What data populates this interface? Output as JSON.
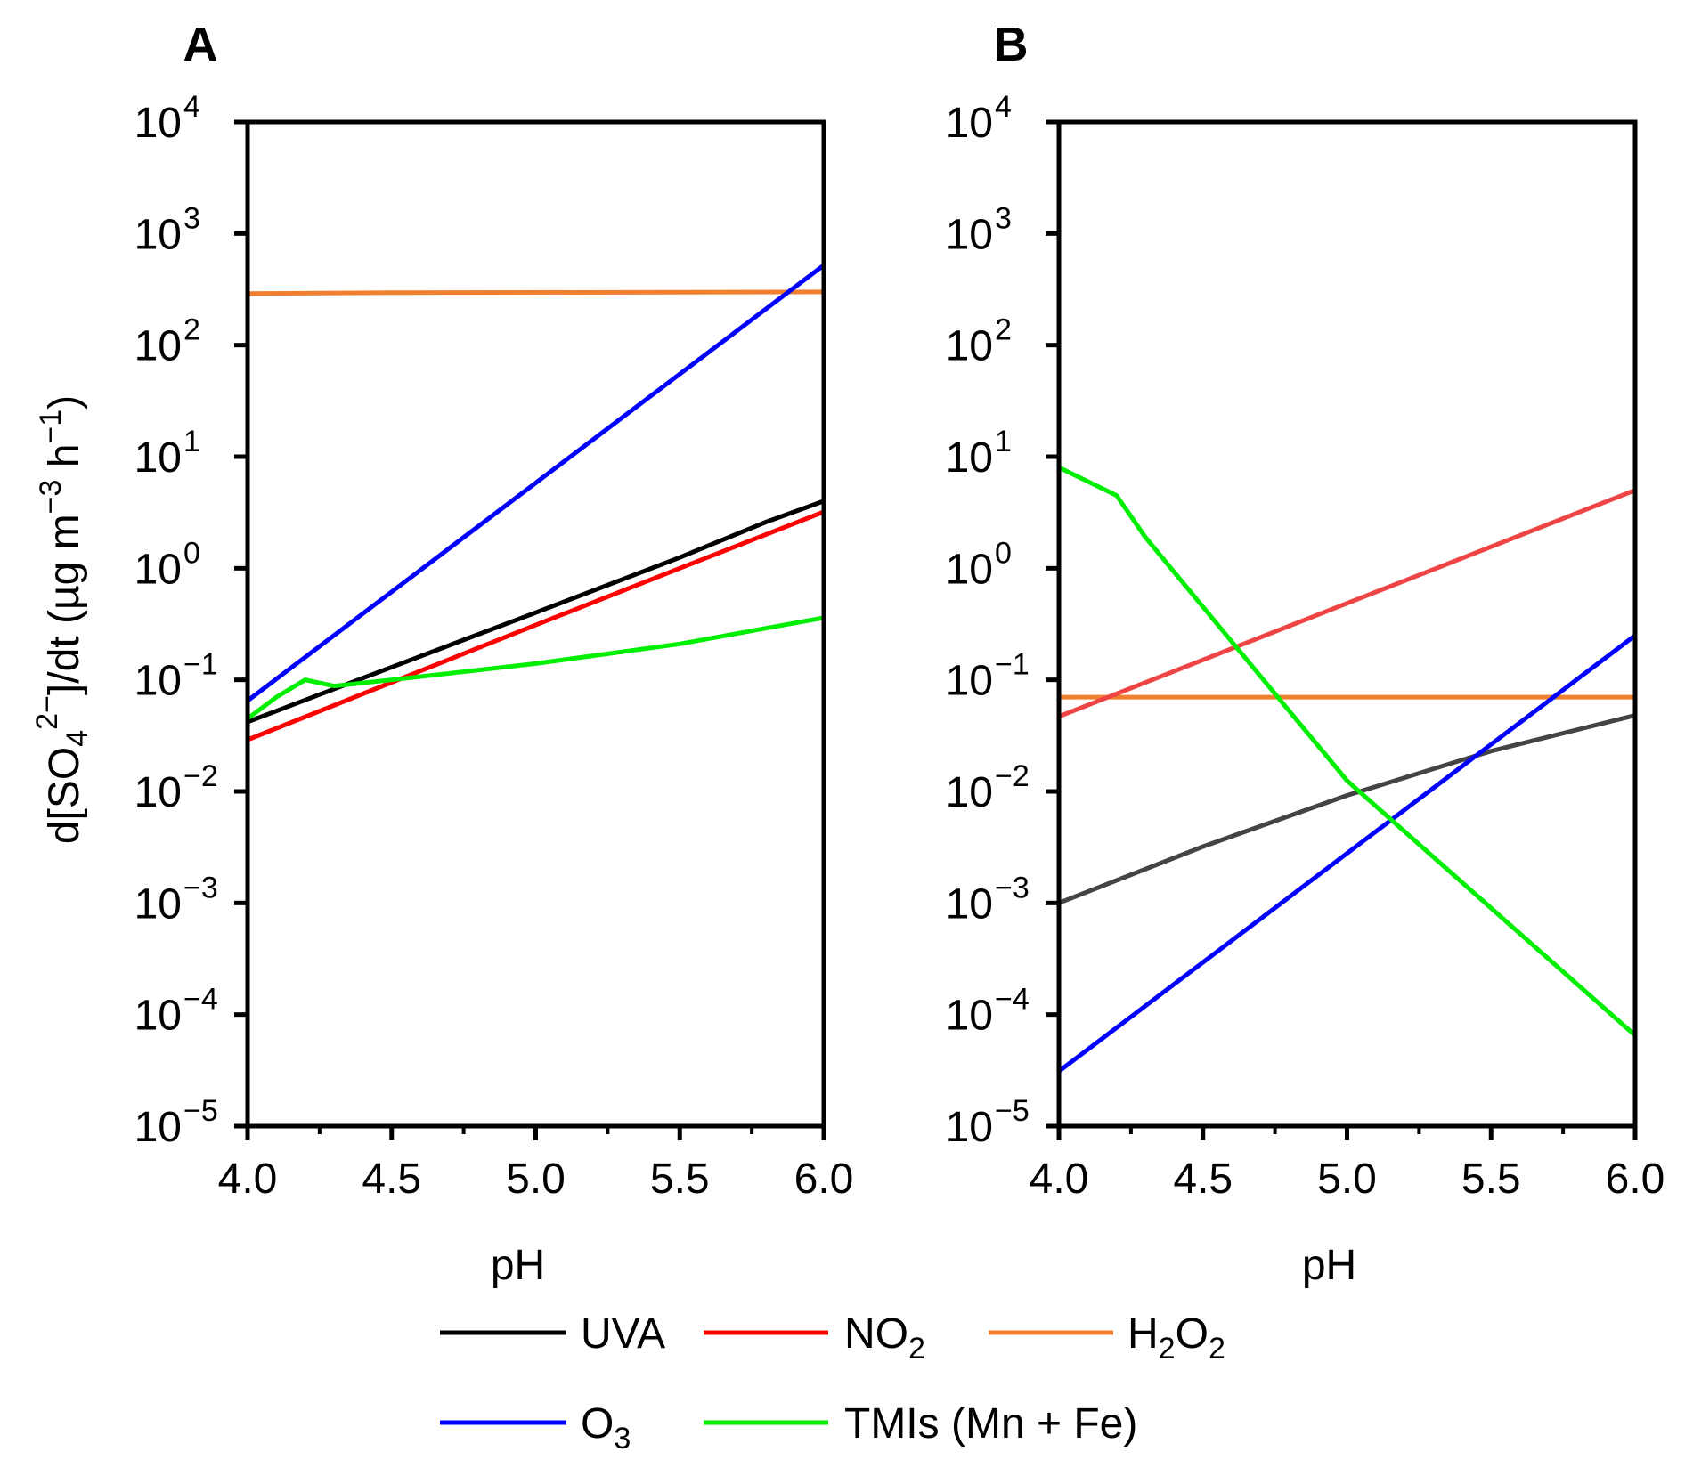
{
  "figure": {
    "legend": [
      {
        "key": "UVA",
        "label": "UVA",
        "sub": "",
        "tail": "",
        "color": "#000000"
      },
      {
        "key": "NO2",
        "label": "NO",
        "sub": "2",
        "tail": "",
        "color": "#ff0000"
      },
      {
        "key": "H2O2",
        "label": "H",
        "sub": "2",
        "tail": "O",
        "sub2": "2",
        "color": "#f08030"
      },
      {
        "key": "O3",
        "label": "O",
        "sub": "3",
        "tail": "",
        "color": "#0000ff"
      },
      {
        "key": "TMIs",
        "label": "TMIs (Mn + Fe)",
        "sub": "",
        "tail": "",
        "color": "#00ee00"
      }
    ]
  },
  "chart_data": [
    {
      "type": "line",
      "panel_label": "A",
      "xlabel": "pH",
      "ylabel": "d[SO4^2-]/dt  (µg m^-3 h^-1)",
      "ylabel_parts": {
        "pre": "d[SO",
        "sub": "4",
        "sup": "2−",
        "mid": "]/dt  (µg m",
        "sup2": "−3",
        "mid2": " h",
        "sup3": "−1",
        "post": ")"
      },
      "xlim": [
        4.0,
        6.0
      ],
      "ylim": [
        1e-05,
        10000.0
      ],
      "yscale": "log",
      "xticks": [
        "4.0",
        "4.5",
        "5.0",
        "5.5",
        "6.0"
      ],
      "yticks": [
        {
          "base": "10",
          "exp": "4"
        },
        {
          "base": "10",
          "exp": "3"
        },
        {
          "base": "10",
          "exp": "2"
        },
        {
          "base": "10",
          "exp": "1"
        },
        {
          "base": "10",
          "exp": "0"
        },
        {
          "base": "10",
          "exp": "−1"
        },
        {
          "base": "10",
          "exp": "−2"
        },
        {
          "base": "10",
          "exp": "−3"
        },
        {
          "base": "10",
          "exp": "−4"
        },
        {
          "base": "10",
          "exp": "−5"
        }
      ],
      "series": [
        {
          "key": "H2O2",
          "color": "#f08030",
          "x": [
            4.0,
            4.5,
            6.0
          ],
          "y": [
            290,
            295,
            300
          ]
        },
        {
          "key": "O3",
          "color": "#0000ff",
          "x": [
            4.0,
            6.0
          ],
          "y": [
            0.065,
            520
          ]
        },
        {
          "key": "UVA",
          "color": "#000000",
          "x": [
            4.0,
            4.5,
            5.0,
            5.5,
            5.8,
            6.0
          ],
          "y": [
            0.042,
            0.13,
            0.4,
            1.25,
            2.6,
            4.0
          ]
        },
        {
          "key": "NO2",
          "color": "#ff0000",
          "x": [
            4.0,
            4.5,
            5.0,
            5.5,
            6.0
          ],
          "y": [
            0.029,
            0.095,
            0.31,
            1.0,
            3.2
          ]
        },
        {
          "key": "TMIs",
          "color": "#00ee00",
          "x": [
            4.0,
            4.1,
            4.2,
            4.3,
            4.5,
            5.0,
            5.5,
            6.0
          ],
          "y": [
            0.045,
            0.07,
            0.1,
            0.088,
            0.1,
            0.14,
            0.21,
            0.36
          ]
        }
      ]
    },
    {
      "type": "line",
      "panel_label": "B",
      "xlabel": "pH",
      "xlim": [
        4.0,
        6.0
      ],
      "ylim": [
        1e-05,
        10000.0
      ],
      "yscale": "log",
      "xticks": [
        "4.0",
        "4.5",
        "5.0",
        "5.5",
        "6.0"
      ],
      "yticks": [
        {
          "base": "10",
          "exp": "4"
        },
        {
          "base": "10",
          "exp": "3"
        },
        {
          "base": "10",
          "exp": "2"
        },
        {
          "base": "10",
          "exp": "1"
        },
        {
          "base": "10",
          "exp": "0"
        },
        {
          "base": "10",
          "exp": "−1"
        },
        {
          "base": "10",
          "exp": "−2"
        },
        {
          "base": "10",
          "exp": "−3"
        },
        {
          "base": "10",
          "exp": "−4"
        },
        {
          "base": "10",
          "exp": "−5"
        }
      ],
      "series": [
        {
          "key": "H2O2",
          "color": "#f08030",
          "x": [
            4.0,
            6.0
          ],
          "y": [
            0.07,
            0.07
          ]
        },
        {
          "key": "NO2",
          "color": "#ee4444",
          "x": [
            4.0,
            6.0
          ],
          "y": [
            0.047,
            5.0
          ]
        },
        {
          "key": "UVA",
          "color": "#444444",
          "x": [
            4.0,
            4.5,
            5.0,
            5.5,
            6.0
          ],
          "y": [
            0.001,
            0.0032,
            0.0092,
            0.023,
            0.048
          ]
        },
        {
          "key": "O3",
          "color": "#0000ff",
          "x": [
            4.0,
            6.0
          ],
          "y": [
            3.1e-05,
            0.25
          ]
        },
        {
          "key": "TMIs",
          "color": "#00ee00",
          "x": [
            4.0,
            4.2,
            4.3,
            4.5,
            5.0,
            5.5,
            6.0
          ],
          "y": [
            8.0,
            4.5,
            1.9,
            0.45,
            0.0125,
            0.0009,
            6.5e-05
          ]
        }
      ]
    }
  ]
}
